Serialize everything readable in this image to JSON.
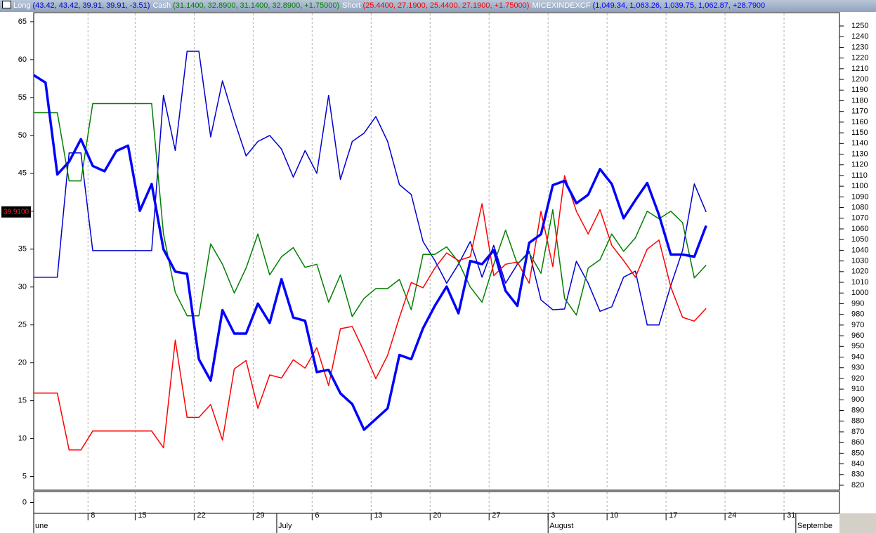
{
  "chart_data": {
    "type": "line",
    "x": [
      0,
      1,
      2,
      3,
      4,
      5,
      6,
      7,
      8,
      9,
      10,
      11,
      12,
      13,
      14,
      15,
      16,
      17,
      18,
      19,
      20,
      21,
      22,
      23,
      24,
      25,
      26,
      27,
      28,
      29,
      30,
      31,
      32,
      33,
      34,
      35,
      36,
      37,
      38,
      39,
      40,
      41,
      42,
      43,
      44,
      45,
      46,
      47,
      48,
      49,
      50,
      51,
      52,
      53,
      54,
      55,
      56,
      57
    ],
    "xlim": [
      0,
      68.3
    ],
    "xticks": [
      {
        "value": 4.6,
        "label": "8"
      },
      {
        "value": 8.6,
        "label": "15"
      },
      {
        "value": 13.6,
        "label": "22"
      },
      {
        "value": 18.6,
        "label": "29"
      },
      {
        "value": 23.6,
        "label": "6"
      },
      {
        "value": 28.6,
        "label": "13"
      },
      {
        "value": 33.6,
        "label": "20"
      },
      {
        "value": 38.6,
        "label": "27"
      },
      {
        "value": 43.6,
        "label": "3"
      },
      {
        "value": 48.6,
        "label": "10"
      },
      {
        "value": 53.6,
        "label": "17"
      },
      {
        "value": 58.6,
        "label": "24"
      },
      {
        "value": 63.6,
        "label": "31"
      }
    ],
    "month_ticks": [
      {
        "value": 0,
        "label": "une"
      },
      {
        "value": 20.6,
        "label": "July"
      },
      {
        "value": 43.6,
        "label": "August"
      },
      {
        "value": 64.6,
        "label": "Septembe"
      }
    ],
    "grid_x": true,
    "ylim": [
      3.2,
      66.2
    ],
    "yticks": [
      5,
      10,
      15,
      20,
      25,
      30,
      35,
      40,
      45,
      50,
      55,
      60,
      65
    ],
    "y2lim": [
      815.4,
      1262.5
    ],
    "y2ticks": [
      820,
      830,
      840,
      850,
      860,
      870,
      880,
      890,
      900,
      910,
      920,
      930,
      940,
      950,
      960,
      970,
      980,
      990,
      1000,
      1010,
      1020,
      1030,
      1040,
      1050,
      1060,
      1070,
      1080,
      1090,
      1100,
      1110,
      1120,
      1130,
      1140,
      1150,
      1160,
      1170,
      1180,
      1190,
      1200,
      1210,
      1220,
      1230,
      1240,
      1250
    ],
    "series": [
      {
        "name": "Long",
        "legend_values": "(43.42, 43.42, 39.91, 39.91, -3.51)",
        "color": "#0000d0",
        "line_width": 1.5,
        "values": [
          31.3,
          31.3,
          31.3,
          47.7,
          47.7,
          34.8,
          34.8,
          34.8,
          34.8,
          34.8,
          34.8,
          55.3,
          48,
          61.1,
          61.1,
          49.8,
          57.2,
          52,
          47.3,
          49.2,
          50,
          48.2,
          44.5,
          48,
          45,
          55.3,
          44.2,
          49.2,
          50.3,
          52.5,
          49.2,
          43.5,
          42.2,
          36,
          33.5,
          30.5,
          33,
          36,
          31.3,
          35.5,
          30.5,
          33,
          34.7,
          28.3,
          27,
          27.1,
          33.4,
          30.5,
          26.8,
          27.4,
          31.3,
          32.1,
          25,
          25,
          30.2,
          34.8,
          43.6,
          39.91
        ]
      },
      {
        "name": "Cash",
        "legend_values": "(31.1400, 32.8900, 31.1400, 32.8900, +1.75000)",
        "color": "#008000",
        "line_width": 1.5,
        "values": [
          53,
          53,
          53,
          44,
          44,
          54.2,
          54.2,
          54.2,
          54.2,
          54.2,
          54.2,
          37,
          29.3,
          26.2,
          26.2,
          35.7,
          33,
          29.2,
          32.5,
          37,
          31.6,
          34,
          35.2,
          32.6,
          33,
          28,
          31.6,
          26.1,
          28.5,
          29.8,
          29.8,
          31,
          27,
          34.3,
          34.3,
          35.3,
          33.3,
          30,
          28,
          33,
          37.5,
          33,
          34.5,
          31.8,
          40.2,
          28.5,
          26.3,
          32.5,
          33.6,
          37,
          34.7,
          36.5,
          40,
          39,
          40,
          38.5,
          31.2,
          32.89
        ]
      },
      {
        "name": "Short",
        "legend_values": "(25.4400, 27.1900, 25.4400, 27.1900, +1.75000)",
        "color": "#ff0000",
        "line_width": 1.5,
        "values": [
          16,
          16,
          16,
          8.5,
          8.5,
          11,
          11,
          11,
          11,
          11,
          11,
          8.8,
          23,
          12.8,
          12.8,
          14.5,
          9.8,
          19.2,
          20.3,
          14,
          18.4,
          18,
          20.4,
          19.3,
          22,
          17,
          24.5,
          24.8,
          21.5,
          17.9,
          21,
          26,
          30.6,
          29.9,
          32.5,
          34.5,
          33.5,
          34,
          41,
          31.5,
          33,
          33.3,
          30.5,
          40,
          32.7,
          44.7,
          40,
          37,
          40.2,
          35.5,
          33.5,
          31.3,
          35,
          36.2,
          30,
          26,
          25.5,
          27.19
        ]
      },
      {
        "name": "MICEXINDEXCF",
        "legend_values": "(1,049.34, 1,063.26, 1,039.75, 1,062.87, +28.7900",
        "color": "#0000ff",
        "line_width": 3.5,
        "axis": "y2",
        "values": [
          1204,
          1197,
          1111,
          1123,
          1144,
          1119,
          1114,
          1133,
          1138,
          1077,
          1102,
          1041,
          1020,
          1018,
          938,
          918,
          984,
          962,
          962,
          990,
          972,
          1013,
          977,
          974,
          926,
          928,
          906,
          896,
          872,
          882,
          892,
          942,
          938,
          967,
          988,
          1006,
          981,
          1030,
          1027,
          1040,
          1002,
          988,
          1047,
          1055,
          1101,
          1105,
          1084,
          1092,
          1116,
          1102,
          1070,
          1087,
          1103,
          1073,
          1036,
          1036,
          1034,
          1063
        ]
      }
    ],
    "last_value_marker": {
      "value": 39.91,
      "label": "39.9100"
    },
    "lower_panel": {
      "ylim": [
        -1,
        1
      ],
      "yticks": [
        0
      ]
    }
  }
}
